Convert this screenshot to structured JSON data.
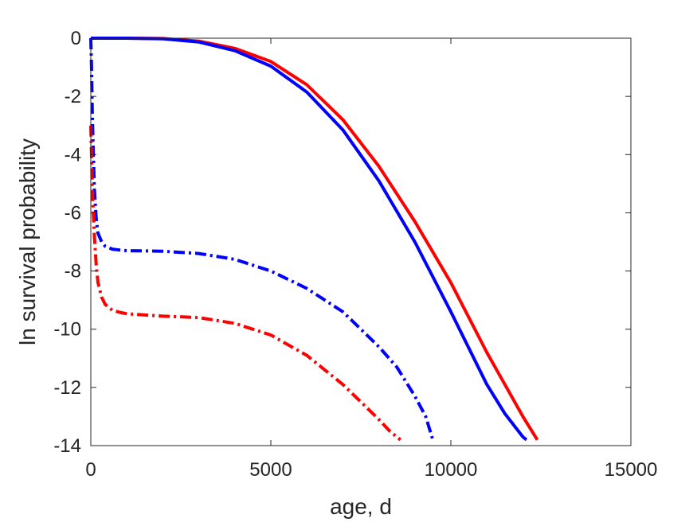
{
  "chart_data": {
    "type": "line",
    "title": "",
    "xlabel": "age, d",
    "ylabel": "ln survival probability",
    "xlim": [
      0,
      15000
    ],
    "ylim": [
      -14,
      0
    ],
    "xticks": [
      0,
      5000,
      10000,
      15000
    ],
    "yticks": [
      0,
      -2,
      -4,
      -6,
      -8,
      -10,
      -12,
      -14
    ],
    "xtick_labels": [
      "0",
      "5000",
      "10000",
      "15000"
    ],
    "ytick_labels": [
      "0",
      "-2",
      "-4",
      "-6",
      "-8",
      "-10",
      "-12",
      "-14"
    ],
    "grid": false,
    "legend": "none",
    "series": [
      {
        "color": "#ff0000",
        "style": "solid",
        "x": [
          0,
          500,
          1000,
          2000,
          3000,
          4000,
          5000,
          6000,
          7000,
          8000,
          9000,
          10000,
          11000,
          11500,
          12000,
          12400
        ],
        "y": [
          0,
          0,
          0,
          -0.01,
          -0.1,
          -0.35,
          -0.8,
          -1.6,
          -2.8,
          -4.4,
          -6.3,
          -8.4,
          -10.8,
          -11.9,
          -13.0,
          -13.8
        ]
      },
      {
        "color": "#0000ff",
        "style": "solid",
        "x": [
          0,
          500,
          1000,
          2000,
          3000,
          4000,
          5000,
          6000,
          7000,
          8000,
          9000,
          10000,
          11000,
          11500,
          12000,
          12100
        ],
        "y": [
          0,
          0,
          0,
          -0.02,
          -0.13,
          -0.43,
          -0.96,
          -1.85,
          -3.15,
          -4.9,
          -7.0,
          -9.4,
          -11.9,
          -12.9,
          -13.7,
          -13.8
        ]
      },
      {
        "color": "#0000ff",
        "style": "dashdot",
        "x": [
          0,
          20,
          40,
          70,
          100,
          150,
          200,
          300,
          400,
          600,
          800,
          1000,
          2000,
          3000,
          4000,
          5000,
          6000,
          7000,
          8000,
          8500,
          9000,
          9300,
          9500
        ],
        "y": [
          0,
          -1.0,
          -2.5,
          -4.0,
          -5.2,
          -6.2,
          -6.7,
          -7.0,
          -7.15,
          -7.25,
          -7.28,
          -7.3,
          -7.32,
          -7.4,
          -7.6,
          -8.0,
          -8.6,
          -9.4,
          -10.6,
          -11.3,
          -12.3,
          -13.0,
          -13.8
        ]
      },
      {
        "color": "#ff0000",
        "style": "dashdot",
        "x": [
          0,
          20,
          40,
          70,
          100,
          150,
          200,
          300,
          400,
          600,
          800,
          1000,
          2000,
          3000,
          4000,
          5000,
          6000,
          7000,
          7500,
          8000,
          8300,
          8600
        ],
        "y": [
          -3.0,
          -4.0,
          -5.0,
          -6.0,
          -6.8,
          -7.8,
          -8.4,
          -8.9,
          -9.15,
          -9.35,
          -9.42,
          -9.47,
          -9.55,
          -9.6,
          -9.8,
          -10.2,
          -10.9,
          -11.9,
          -12.5,
          -13.1,
          -13.5,
          -13.8
        ]
      }
    ]
  }
}
